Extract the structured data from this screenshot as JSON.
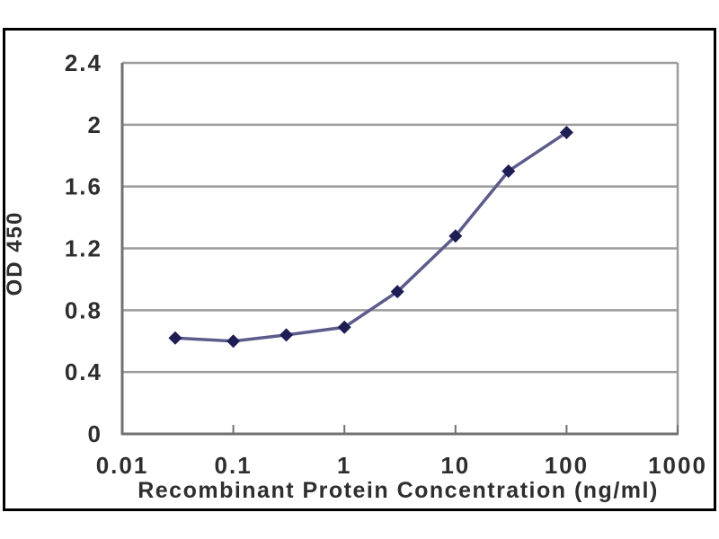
{
  "chart_data": {
    "type": "line",
    "title": "",
    "xlabel": "Recombinant Protein Concentration (ng/ml)",
    "ylabel": "OD 450",
    "x_scale": "log",
    "x": [
      0.03,
      0.1,
      0.3,
      1,
      3,
      10,
      30,
      100
    ],
    "y": [
      0.62,
      0.6,
      0.64,
      0.69,
      0.92,
      1.28,
      1.7,
      1.95
    ],
    "xlim": [
      0.01,
      1000
    ],
    "ylim": [
      0,
      2.4
    ],
    "x_tick_values": [
      0.01,
      0.1,
      1,
      10,
      100,
      1000
    ],
    "x_tick_labels": [
      "0.01",
      "0.1",
      "1",
      "10",
      "100",
      "1000"
    ],
    "y_tick_values": [
      0,
      0.4,
      0.8,
      1.2,
      1.6,
      2,
      2.4
    ],
    "y_tick_labels": [
      "0",
      "0.4",
      "0.8",
      "1.2",
      "1.6",
      "2",
      "2.4"
    ],
    "grid": "horizontal",
    "legend": false,
    "marker": "diamond",
    "colors": {
      "line": "#5c5c8c",
      "marker": "#1e1e55",
      "grid": "#9c9c9c",
      "axis": "#717171",
      "text": "#2e2e2e",
      "frame": "#000000",
      "background": "#ffffff"
    }
  }
}
